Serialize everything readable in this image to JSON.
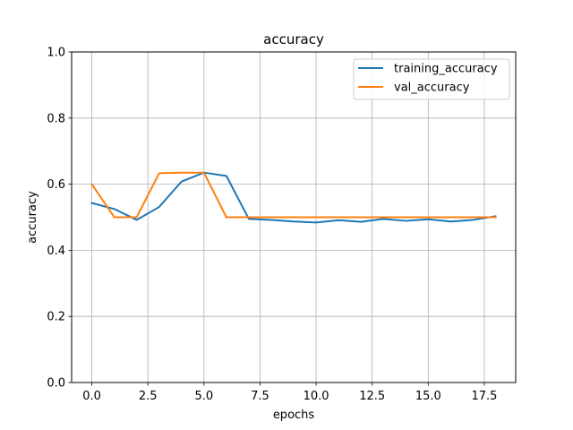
{
  "chart_data": {
    "type": "line",
    "title": "accuracy",
    "xlabel": "epochs",
    "ylabel": "accuracy",
    "xlim": [
      -0.9,
      18.9
    ],
    "ylim": [
      0.0,
      1.0
    ],
    "xticks": [
      0.0,
      2.5,
      5.0,
      7.5,
      10.0,
      12.5,
      15.0,
      17.5
    ],
    "xtick_labels": [
      "0.0",
      "2.5",
      "5.0",
      "7.5",
      "10.0",
      "12.5",
      "15.0",
      "17.5"
    ],
    "yticks": [
      0.0,
      0.2,
      0.4,
      0.6,
      0.8,
      1.0
    ],
    "ytick_labels": [
      "0.0",
      "0.2",
      "0.4",
      "0.6",
      "0.8",
      "1.0"
    ],
    "grid": true,
    "legend_position": "top-right",
    "x": [
      0,
      1,
      2,
      3,
      4,
      5,
      6,
      7,
      8,
      9,
      10,
      11,
      12,
      13,
      14,
      15,
      16,
      17,
      18
    ],
    "series": [
      {
        "name": "training_accuracy",
        "color": "#1f77b4",
        "values": [
          0.543,
          0.525,
          0.492,
          0.531,
          0.608,
          0.635,
          0.625,
          0.495,
          0.492,
          0.487,
          0.484,
          0.491,
          0.486,
          0.495,
          0.489,
          0.494,
          0.487,
          0.492,
          0.503
        ]
      },
      {
        "name": "val_accuracy",
        "color": "#ff7f0e",
        "values": [
          0.6,
          0.5,
          0.5,
          0.633,
          0.635,
          0.635,
          0.5,
          0.5,
          0.5,
          0.5,
          0.5,
          0.5,
          0.5,
          0.5,
          0.5,
          0.5,
          0.5,
          0.5,
          0.5
        ]
      }
    ]
  }
}
